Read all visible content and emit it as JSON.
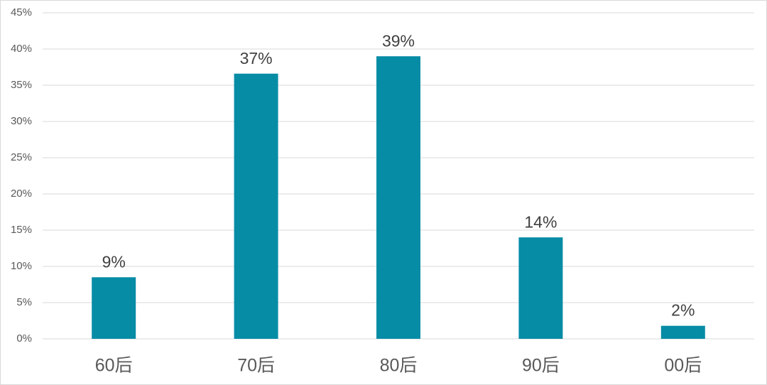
{
  "chart_data": {
    "type": "bar",
    "categories": [
      "60后",
      "70后",
      "80后",
      "90后",
      "00后"
    ],
    "values": [
      8.5,
      36.6,
      39,
      14,
      1.8
    ],
    "value_labels": [
      "9%",
      "37%",
      "39%",
      "14%",
      "2%"
    ],
    "color": "#078ca6",
    "ylim": [
      0,
      45
    ],
    "yticks": [
      {
        "value": 0,
        "label": "0%"
      },
      {
        "value": 5,
        "label": "5%"
      },
      {
        "value": 10,
        "label": "10%"
      },
      {
        "value": 15,
        "label": "15%"
      },
      {
        "value": 20,
        "label": "20%"
      },
      {
        "value": 25,
        "label": "25%"
      },
      {
        "value": 30,
        "label": "30%"
      },
      {
        "value": 35,
        "label": "35%"
      },
      {
        "value": 40,
        "label": "40%"
      },
      {
        "value": 45,
        "label": "45%"
      }
    ],
    "grid": true
  }
}
